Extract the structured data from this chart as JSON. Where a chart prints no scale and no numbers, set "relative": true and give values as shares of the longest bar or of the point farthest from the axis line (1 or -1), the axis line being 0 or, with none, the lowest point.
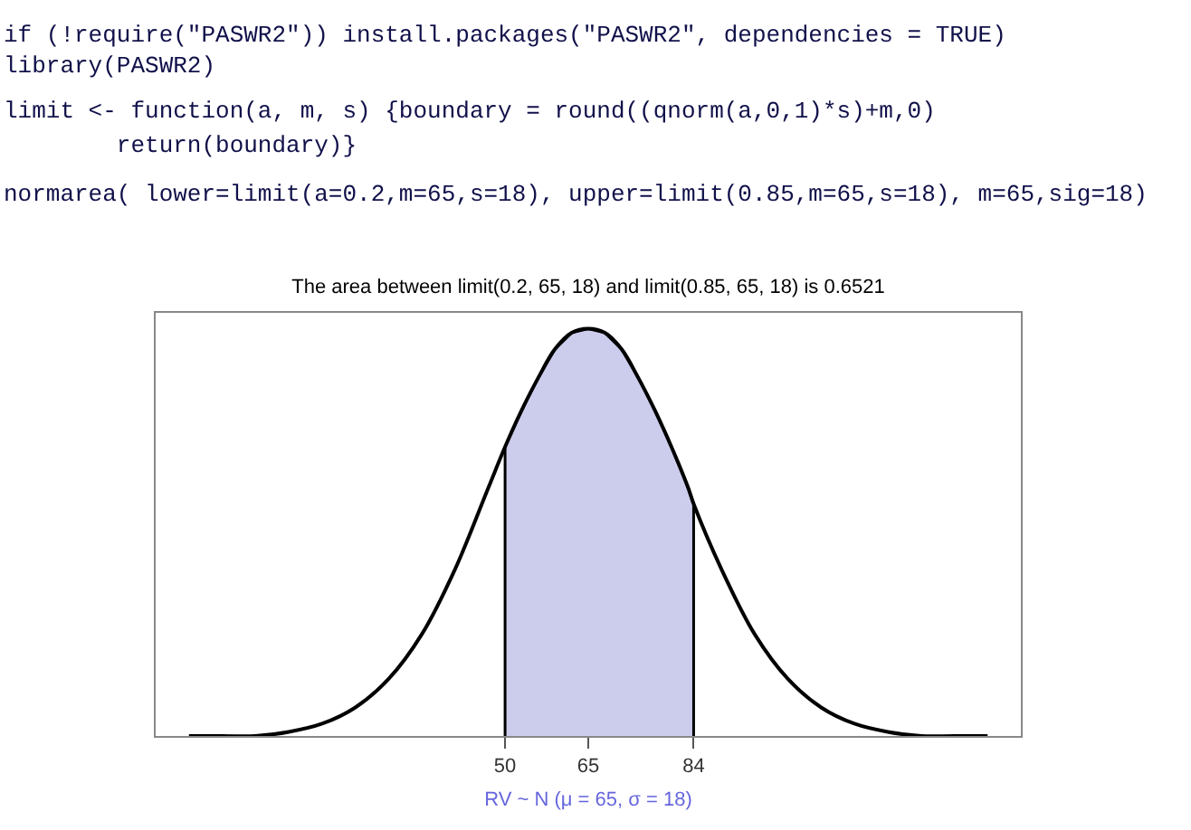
{
  "chart_data": {
    "type": "line",
    "relative": true,
    "title": "The area between limit(0.2, 65, 18) and limit(0.85, 65, 18) is 0.6521",
    "xlabel": "RV ~ N (μ = 65, σ = 18)",
    "annotations": [
      "if (!require(\"PASWR2\")) install.packages(\"PASWR2\", dependencies = TRUE)",
      "library(PASWR2)",
      "limit <- function(a, m, s) {boundary = round((qnorm(a,0,1)*s)+m,0)",
      "        return(boundary)}",
      "normarea( lower=limit(a=0.2,m=65,s=18), upper=limit(0.85,m=65,s=18), m=65,sig=18)"
    ],
    "xlim": [
      -13,
      143
    ],
    "xticks": [
      50,
      65,
      84
    ],
    "marker": "none",
    "line_style": "solid",
    "series": [
      {
        "type": "area",
        "color": "#ccccec",
        "x": [
          50,
          50,
          53,
          56,
          59,
          62,
          65,
          68,
          71,
          74,
          77,
          80,
          83,
          84,
          84
        ],
        "values": [
          0,
          0.71,
          0.8,
          0.88,
          0.95,
          0.99,
          1,
          0.99,
          0.95,
          0.88,
          0.8,
          0.71,
          0.61,
          0.57,
          0
        ]
      },
      {
        "type": "line",
        "color": "#000000",
        "x": [
          -7,
          -1,
          5,
          11,
          17,
          23,
          29,
          35,
          41,
          47,
          50,
          53,
          56,
          59,
          62,
          65,
          68,
          71,
          74,
          77,
          80,
          83,
          84,
          89,
          95,
          101,
          107,
          113,
          119,
          125,
          131,
          137
        ],
        "values": [
          0,
          0,
          0,
          0.01,
          0.03,
          0.07,
          0.14,
          0.25,
          0.41,
          0.61,
          0.71,
          0.8,
          0.88,
          0.95,
          0.99,
          1,
          0.99,
          0.95,
          0.88,
          0.8,
          0.71,
          0.61,
          0.57,
          0.41,
          0.25,
          0.14,
          0.07,
          0.03,
          0.01,
          0,
          0,
          0
        ]
      }
    ]
  }
}
